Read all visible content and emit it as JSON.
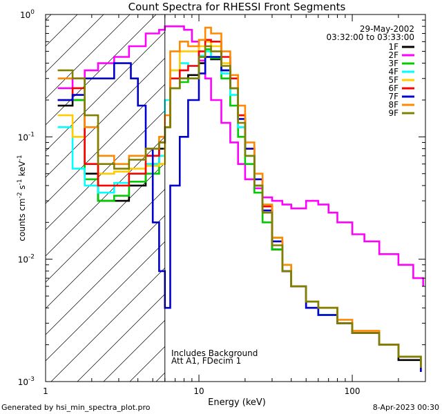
{
  "chart_data": {
    "type": "line",
    "title": "Count Spectra for RHESSI Front Segments",
    "xlabel": "Energy (keV)",
    "ylabel": "counts cm^-2 s^-1 keV^-1",
    "x_scale": "log",
    "y_scale": "log",
    "xlim": [
      1,
      300
    ],
    "ylim": [
      0.001,
      1
    ],
    "x_ticks": [
      {
        "value": 1,
        "label": "1"
      },
      {
        "value": 10,
        "label": "10"
      },
      {
        "value": 100,
        "label": "100"
      }
    ],
    "y_ticks": [
      {
        "value": 1,
        "label": "10^0"
      },
      {
        "value": 0.1,
        "label": "10^-1"
      },
      {
        "value": 0.01,
        "label": "10^-2"
      },
      {
        "value": 0.001,
        "label": "10^-3"
      }
    ],
    "date": "29-May-2002",
    "time_range": "03:32:00 to 03:33:00",
    "annotations": [
      "Includes Background",
      "Att A1, FDecim 1"
    ],
    "threshold_keV": 6,
    "series": [
      {
        "name": "1F",
        "color": "#000000",
        "points": [
          [
            1.2,
            0.18
          ],
          [
            1.5,
            0.2
          ],
          [
            1.8,
            0.05
          ],
          [
            2.2,
            0.03
          ],
          [
            2.8,
            0.03
          ],
          [
            3.5,
            0.04
          ],
          [
            4.5,
            0.06
          ],
          [
            5.5,
            0.08
          ],
          [
            6,
            0.12
          ],
          [
            6.5,
            0.25
          ],
          [
            7.5,
            0.3
          ],
          [
            8.5,
            0.32
          ],
          [
            10,
            0.4
          ],
          [
            11,
            0.45
          ],
          [
            12,
            0.43
          ],
          [
            14,
            0.35
          ],
          [
            16,
            0.25
          ],
          [
            18,
            0.12
          ],
          [
            20,
            0.07
          ],
          [
            23,
            0.04
          ],
          [
            26,
            0.025
          ],
          [
            30,
            0.012
          ],
          [
            35,
            0.008
          ],
          [
            40,
            0.006
          ],
          [
            50,
            0.004
          ],
          [
            60,
            0.0035
          ],
          [
            80,
            0.003
          ],
          [
            100,
            0.0025
          ],
          [
            150,
            0.002
          ],
          [
            200,
            0.0015
          ],
          [
            280,
            0.0012
          ]
        ]
      },
      {
        "name": "2F",
        "color": "#ff00ff",
        "points": [
          [
            1.2,
            0.25
          ],
          [
            1.5,
            0.3
          ],
          [
            1.8,
            0.35
          ],
          [
            2.2,
            0.4
          ],
          [
            2.8,
            0.45
          ],
          [
            3.5,
            0.55
          ],
          [
            4.5,
            0.7
          ],
          [
            5.5,
            0.75
          ],
          [
            6,
            0.8
          ],
          [
            7,
            0.8
          ],
          [
            8,
            0.75
          ],
          [
            9,
            0.6
          ],
          [
            10,
            0.42
          ],
          [
            11,
            0.3
          ],
          [
            12,
            0.2
          ],
          [
            14,
            0.13
          ],
          [
            16,
            0.09
          ],
          [
            18,
            0.06
          ],
          [
            20,
            0.045
          ],
          [
            23,
            0.038
          ],
          [
            26,
            0.032
          ],
          [
            30,
            0.03
          ],
          [
            35,
            0.028
          ],
          [
            40,
            0.026
          ],
          [
            50,
            0.03
          ],
          [
            60,
            0.028
          ],
          [
            70,
            0.024
          ],
          [
            80,
            0.02
          ],
          [
            100,
            0.016
          ],
          [
            120,
            0.014
          ],
          [
            150,
            0.011
          ],
          [
            200,
            0.009
          ],
          [
            250,
            0.007
          ],
          [
            290,
            0.006
          ]
        ]
      },
      {
        "name": "3F",
        "color": "#00cc00",
        "points": [
          [
            1.2,
            0.2
          ],
          [
            1.5,
            0.2
          ],
          [
            1.8,
            0.045
          ],
          [
            2.2,
            0.03
          ],
          [
            2.8,
            0.033
          ],
          [
            3.5,
            0.043
          ],
          [
            4.5,
            0.05
          ],
          [
            5.5,
            0.06
          ],
          [
            6,
            0.12
          ],
          [
            6.5,
            0.25
          ],
          [
            7.5,
            0.28
          ],
          [
            8.5,
            0.3
          ],
          [
            10,
            0.45
          ],
          [
            11,
            0.52
          ],
          [
            12,
            0.44
          ],
          [
            14,
            0.3
          ],
          [
            16,
            0.18
          ],
          [
            18,
            0.1
          ],
          [
            20,
            0.06
          ],
          [
            23,
            0.035
          ],
          [
            26,
            0.02
          ],
          [
            30,
            0.012
          ],
          [
            35,
            0.008
          ],
          [
            40,
            0.006
          ],
          [
            50,
            0.0045
          ],
          [
            60,
            0.004
          ],
          [
            80,
            0.003
          ],
          [
            100,
            0.0025
          ],
          [
            150,
            0.002
          ],
          [
            200,
            0.0016
          ],
          [
            280,
            0.0013
          ]
        ]
      },
      {
        "name": "4F",
        "color": "#00ffff",
        "points": [
          [
            1.2,
            0.12
          ],
          [
            1.5,
            0.055
          ],
          [
            1.8,
            0.04
          ],
          [
            2.2,
            0.035
          ],
          [
            2.8,
            0.042
          ],
          [
            3.5,
            0.05
          ],
          [
            4.5,
            0.06
          ],
          [
            5.5,
            0.07
          ],
          [
            6,
            0.2
          ],
          [
            6.5,
            0.35
          ],
          [
            7.5,
            0.4
          ],
          [
            8.5,
            0.38
          ],
          [
            10,
            0.46
          ],
          [
            11,
            0.5
          ],
          [
            12,
            0.45
          ],
          [
            14,
            0.33
          ],
          [
            16,
            0.22
          ],
          [
            18,
            0.12
          ],
          [
            20,
            0.07
          ],
          [
            23,
            0.04
          ],
          [
            26,
            0.025
          ],
          [
            30,
            0.015
          ],
          [
            35,
            0.009
          ],
          [
            40,
            0.006
          ],
          [
            50,
            0.0045
          ],
          [
            60,
            0.0035
          ],
          [
            80,
            0.003
          ],
          [
            100,
            0.0025
          ],
          [
            150,
            0.002
          ],
          [
            200,
            0.0016
          ],
          [
            280,
            0.0013
          ]
        ]
      },
      {
        "name": "5F",
        "color": "#ffcc00",
        "points": [
          [
            1.2,
            0.15
          ],
          [
            1.5,
            0.1
          ],
          [
            1.8,
            0.06
          ],
          [
            2.2,
            0.05
          ],
          [
            2.8,
            0.052
          ],
          [
            3.5,
            0.055
          ],
          [
            4.5,
            0.058
          ],
          [
            5.5,
            0.06
          ],
          [
            6,
            0.12
          ],
          [
            6.5,
            0.35
          ],
          [
            7.5,
            0.5
          ],
          [
            8.5,
            0.5
          ],
          [
            10,
            0.55
          ],
          [
            11,
            0.6
          ],
          [
            12,
            0.55
          ],
          [
            14,
            0.4
          ],
          [
            16,
            0.25
          ],
          [
            18,
            0.15
          ],
          [
            20,
            0.08
          ],
          [
            23,
            0.045
          ],
          [
            26,
            0.025
          ],
          [
            30,
            0.015
          ],
          [
            35,
            0.009
          ],
          [
            40,
            0.006
          ],
          [
            50,
            0.0045
          ],
          [
            60,
            0.004
          ],
          [
            80,
            0.003
          ],
          [
            100,
            0.0025
          ],
          [
            150,
            0.002
          ],
          [
            200,
            0.0016
          ],
          [
            280,
            0.0013
          ]
        ]
      },
      {
        "name": "6F",
        "color": "#ff0000",
        "points": [
          [
            1.2,
            0.2
          ],
          [
            1.5,
            0.25
          ],
          [
            1.8,
            0.06
          ],
          [
            2.2,
            0.04
          ],
          [
            2.8,
            0.04
          ],
          [
            3.5,
            0.05
          ],
          [
            4.5,
            0.07
          ],
          [
            5.5,
            0.09
          ],
          [
            6,
            0.12
          ],
          [
            6.5,
            0.3
          ],
          [
            7.5,
            0.35
          ],
          [
            8.5,
            0.38
          ],
          [
            10,
            0.5
          ],
          [
            11,
            0.62
          ],
          [
            12,
            0.6
          ],
          [
            14,
            0.45
          ],
          [
            16,
            0.3
          ],
          [
            18,
            0.15
          ],
          [
            20,
            0.08
          ],
          [
            23,
            0.045
          ],
          [
            26,
            0.027
          ],
          [
            30,
            0.014
          ],
          [
            35,
            0.008
          ],
          [
            40,
            0.006
          ],
          [
            50,
            0.0045
          ],
          [
            60,
            0.004
          ],
          [
            80,
            0.003
          ],
          [
            100,
            0.0025
          ],
          [
            150,
            0.002
          ],
          [
            200,
            0.0016
          ],
          [
            280,
            0.0012
          ]
        ]
      },
      {
        "name": "7F",
        "color": "#0000cc",
        "points": [
          [
            1.2,
            0.2
          ],
          [
            1.5,
            0.22
          ],
          [
            1.8,
            0.3
          ],
          [
            2.2,
            0.3
          ],
          [
            2.8,
            0.4
          ],
          [
            3.2,
            0.4
          ],
          [
            3.6,
            0.3
          ],
          [
            4,
            0.18
          ],
          [
            4.5,
            0.08
          ],
          [
            5,
            0.02
          ],
          [
            5.5,
            0.008
          ],
          [
            6,
            0.004
          ],
          [
            6.5,
            0.04
          ],
          [
            7.5,
            0.1
          ],
          [
            8.5,
            0.2
          ],
          [
            10,
            0.33
          ],
          [
            11,
            0.45
          ],
          [
            12,
            0.45
          ],
          [
            14,
            0.35
          ],
          [
            16,
            0.25
          ],
          [
            18,
            0.14
          ],
          [
            20,
            0.08
          ],
          [
            23,
            0.045
          ],
          [
            26,
            0.025
          ],
          [
            30,
            0.014
          ],
          [
            35,
            0.008
          ],
          [
            40,
            0.006
          ],
          [
            50,
            0.004
          ],
          [
            60,
            0.0035
          ],
          [
            80,
            0.003
          ],
          [
            100,
            0.0025
          ],
          [
            150,
            0.002
          ],
          [
            200,
            0.0016
          ],
          [
            280,
            0.0012
          ]
        ]
      },
      {
        "name": "8F",
        "color": "#ff8800",
        "points": [
          [
            1.2,
            0.3
          ],
          [
            1.5,
            0.3
          ],
          [
            1.8,
            0.12
          ],
          [
            2.2,
            0.07
          ],
          [
            2.8,
            0.06
          ],
          [
            3.5,
            0.07
          ],
          [
            4.5,
            0.08
          ],
          [
            5.5,
            0.1
          ],
          [
            6,
            0.15
          ],
          [
            6.5,
            0.5
          ],
          [
            7.5,
            0.6
          ],
          [
            8.5,
            0.55
          ],
          [
            10,
            0.62
          ],
          [
            11,
            0.78
          ],
          [
            12,
            0.7
          ],
          [
            14,
            0.5
          ],
          [
            16,
            0.32
          ],
          [
            18,
            0.18
          ],
          [
            20,
            0.09
          ],
          [
            23,
            0.05
          ],
          [
            26,
            0.028
          ],
          [
            30,
            0.015
          ],
          [
            35,
            0.009
          ],
          [
            40,
            0.006
          ],
          [
            50,
            0.0045
          ],
          [
            60,
            0.004
          ],
          [
            80,
            0.0032
          ],
          [
            100,
            0.0026
          ],
          [
            150,
            0.002
          ],
          [
            200,
            0.0016
          ],
          [
            280,
            0.0013
          ]
        ]
      },
      {
        "name": "9F",
        "color": "#808000",
        "points": [
          [
            1.2,
            0.35
          ],
          [
            1.5,
            0.3
          ],
          [
            1.8,
            0.15
          ],
          [
            2.2,
            0.06
          ],
          [
            2.8,
            0.055
          ],
          [
            3.5,
            0.065
          ],
          [
            4.5,
            0.08
          ],
          [
            5.5,
            0.09
          ],
          [
            6,
            0.12
          ],
          [
            6.5,
            0.25
          ],
          [
            7.5,
            0.3
          ],
          [
            8.5,
            0.3
          ],
          [
            10,
            0.45
          ],
          [
            11,
            0.55
          ],
          [
            12,
            0.5
          ],
          [
            14,
            0.38
          ],
          [
            16,
            0.25
          ],
          [
            18,
            0.13
          ],
          [
            20,
            0.07
          ],
          [
            23,
            0.04
          ],
          [
            26,
            0.024
          ],
          [
            30,
            0.013
          ],
          [
            35,
            0.008
          ],
          [
            40,
            0.006
          ],
          [
            50,
            0.0045
          ],
          [
            60,
            0.004
          ],
          [
            80,
            0.003
          ],
          [
            100,
            0.0025
          ],
          [
            150,
            0.002
          ],
          [
            200,
            0.0016
          ],
          [
            280,
            0.0013
          ]
        ]
      }
    ]
  },
  "footer": {
    "left": "Generated by hsi_min_spectra_plot.pro",
    "right": "8-Apr-2023 00:30"
  }
}
